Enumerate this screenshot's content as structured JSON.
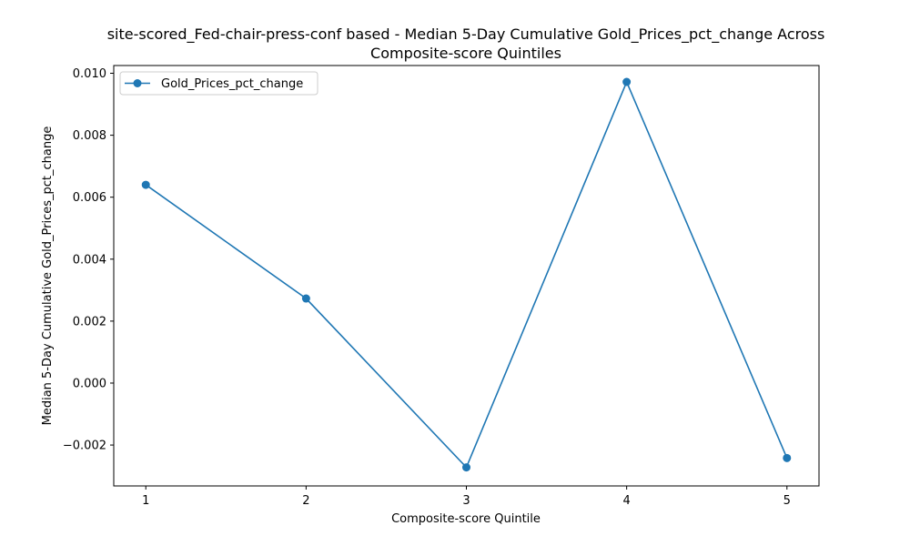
{
  "chart_data": {
    "type": "line",
    "title_line1": "site-scored_Fed-chair-press-conf based - Median 5-Day Cumulative Gold_Prices_pct_change Across",
    "title_line2": "Composite-score Quintiles",
    "xlabel": "Composite-score Quintile",
    "ylabel": "Median 5-Day Cumulative Gold_Prices_pct_change",
    "x": [
      1,
      2,
      3,
      4,
      5
    ],
    "x_tick_labels": [
      "1",
      "2",
      "3",
      "4",
      "5"
    ],
    "y_ticks": [
      -0.002,
      0.0,
      0.002,
      0.004,
      0.006,
      0.008,
      0.01
    ],
    "y_tick_labels": [
      "−0.002",
      "0.000",
      "0.002",
      "0.004",
      "0.006",
      "0.008",
      "0.010"
    ],
    "xlim": [
      0.8,
      5.2
    ],
    "ylim": [
      -0.00332,
      0.01025
    ],
    "series": [
      {
        "name": "Gold_Prices_pct_change",
        "values": [
          0.0064,
          0.00273,
          -0.00272,
          0.00972,
          -0.00242
        ],
        "color": "#1f77b4",
        "marker": "circle"
      }
    ],
    "legend_position": "upper-left",
    "grid": false
  }
}
